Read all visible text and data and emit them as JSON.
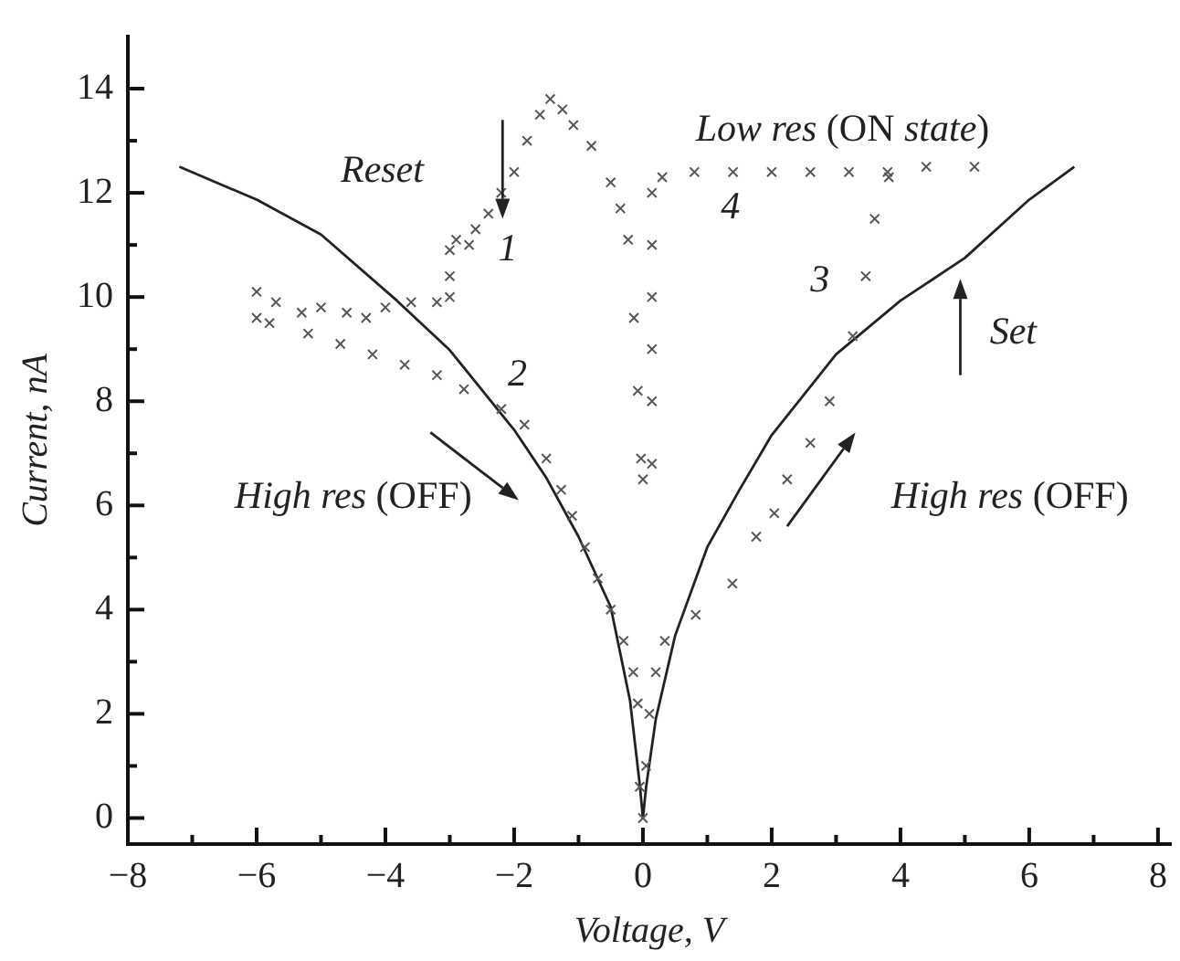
{
  "chart_data": {
    "type": "scatter",
    "xlabel": "Voltage, V",
    "ylabel": "Current, nA",
    "xlim": [
      -8,
      8.2
    ],
    "ylim": [
      -0.5,
      15
    ],
    "xticks": [
      {
        "value": -8,
        "label": "−8"
      },
      {
        "value": -7,
        "label": null
      },
      {
        "value": -6,
        "label": "−6"
      },
      {
        "value": -5,
        "label": null
      },
      {
        "value": -4,
        "label": "−4"
      },
      {
        "value": -3,
        "label": null
      },
      {
        "value": -2,
        "label": "−2"
      },
      {
        "value": -1,
        "label": null
      },
      0,
      {
        "value": 1,
        "label": null
      },
      2,
      {
        "value": 3,
        "label": null
      },
      4,
      {
        "value": 5,
        "label": null
      },
      6,
      {
        "value": 7,
        "label": null
      },
      8
    ],
    "yticks": [
      0,
      {
        "value": 1,
        "label": null
      },
      2,
      {
        "value": 3,
        "label": null
      },
      4,
      {
        "value": 5,
        "label": null
      },
      6,
      {
        "value": 7,
        "label": null
      },
      8,
      {
        "value": 9,
        "label": null
      },
      10,
      {
        "value": 11,
        "label": null
      },
      12,
      {
        "value": 13,
        "label": null
      },
      14
    ],
    "grid": false,
    "legend": false,
    "series": [
      {
        "type": "scatter",
        "marker": "cross",
        "color": "#555555",
        "x": [
          0,
          -0.05,
          -0.08,
          -0.15,
          -0.3,
          -0.5,
          -0.7,
          -0.9,
          -1.1,
          -1.27,
          -1.5,
          -1.84,
          -2.2,
          -2.78,
          -3.2,
          -3.7,
          -4.2,
          -4.7,
          -5.2,
          -5.8,
          -6,
          -6,
          -5.7,
          -5.3,
          -5,
          -4.6,
          -4.3,
          -4,
          -3.6,
          -3.2,
          -3,
          -3,
          -3,
          -2.9,
          -2.7,
          -2.6,
          -2.4,
          -2.2,
          -2,
          -1.8,
          -1.6,
          -1.44,
          -1.25,
          -1.08,
          -0.8,
          -0.5,
          -0.35,
          -0.23,
          -0.14,
          -0.08,
          -0.03,
          0,
          0.14,
          0.14,
          0.14,
          0.14,
          0.14,
          0.14,
          0.3,
          0.8,
          1.4,
          2,
          2.6,
          3.2,
          3.8,
          4.4,
          5.15,
          0.05,
          0.1,
          0.2,
          0.34,
          0.82,
          1.39,
          1.76,
          2.04,
          2.24,
          2.6,
          2.9,
          3.26,
          3.46,
          3.6,
          3.82
        ],
        "values": [
          0,
          0.6,
          2.2,
          2.8,
          3.4,
          4.0,
          4.6,
          5.2,
          5.8,
          6.3,
          6.9,
          7.55,
          7.85,
          8.23,
          8.5,
          8.7,
          8.9,
          9.1,
          9.3,
          9.5,
          9.6,
          10.1,
          9.9,
          9.7,
          9.8,
          9.7,
          9.6,
          9.8,
          9.9,
          9.9,
          10.0,
          10.4,
          10.9,
          11.1,
          11.0,
          11.3,
          11.6,
          12.0,
          12.4,
          13.0,
          13.5,
          13.8,
          13.6,
          13.3,
          12.9,
          12.2,
          11.7,
          11.1,
          9.6,
          8.2,
          6.9,
          6.5,
          6.8,
          8.0,
          9.0,
          10.0,
          11.0,
          12.0,
          12.3,
          12.4,
          12.4,
          12.4,
          12.4,
          12.4,
          12.4,
          12.5,
          12.5,
          1.0,
          2.0,
          2.8,
          3.4,
          3.9,
          4.5,
          5.4,
          5.85,
          6.5,
          7.2,
          8.0,
          9.25,
          10.4,
          11.5,
          12.3
        ]
      },
      {
        "type": "line",
        "marker": "none",
        "line_style": "solid",
        "color": "#222222",
        "x": [
          -7.2,
          -6,
          -5,
          -3.82,
          -3,
          -2,
          -1.5,
          -1,
          -0.5,
          -0.2,
          -0.05,
          0
        ],
        "values": [
          12.5,
          11.87,
          11.2,
          9.93,
          8.98,
          7.45,
          6.53,
          5.4,
          4.05,
          2.25,
          0.65,
          0
        ]
      },
      {
        "type": "line",
        "marker": "none",
        "line_style": "solid",
        "color": "#222222",
        "x": [
          0,
          0.05,
          0.2,
          0.5,
          1,
          1.5,
          2,
          3,
          4,
          5,
          6,
          6.7
        ],
        "values": [
          0,
          0.6,
          1.9,
          3.5,
          5.2,
          6.3,
          7.35,
          8.9,
          9.93,
          10.75,
          11.87,
          12.5
        ]
      }
    ],
    "annotations": [
      "Reset",
      "1",
      "2",
      "3",
      "4",
      "Low res (ON state)",
      "Set",
      "High res (OFF)",
      "High res (OFF)"
    ]
  }
}
